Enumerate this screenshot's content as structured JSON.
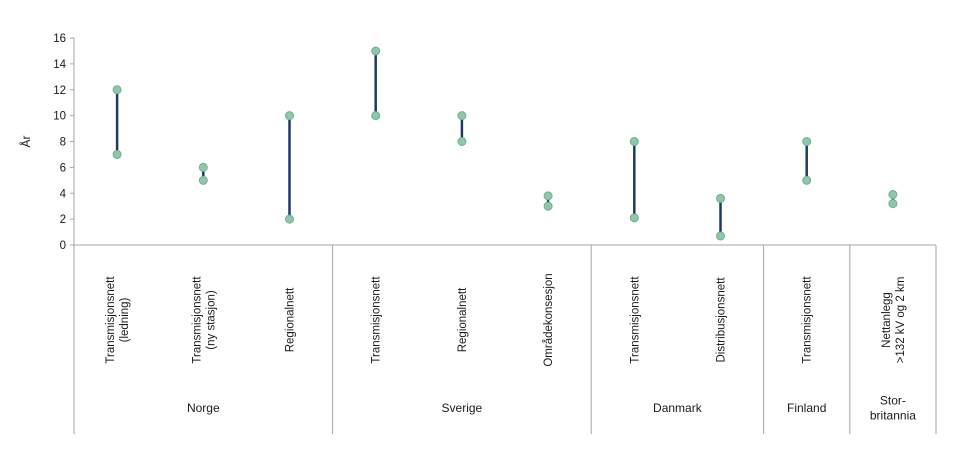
{
  "chart_data": {
    "type": "range",
    "title": "",
    "ylabel": "År",
    "ylim": [
      0,
      16
    ],
    "yticks": [
      0,
      2,
      4,
      6,
      8,
      10,
      12,
      14,
      16
    ],
    "grid": false,
    "legend": "none",
    "groups": [
      {
        "label": "Norge",
        "label_lines": [
          "Norge"
        ],
        "items": [
          {
            "label": "Transmisjonsnett (ledning)",
            "label_lines": [
              "Transmisjonsnett",
              "(ledning)"
            ],
            "low": 7,
            "high": 12
          },
          {
            "label": "Transmisjonsnett (ny stasjon)",
            "label_lines": [
              "Transmisjonsnett",
              "(ny stasjon)"
            ],
            "low": 5,
            "high": 6
          },
          {
            "label": "Regionalnett",
            "label_lines": [
              "Regionalnett"
            ],
            "low": 2,
            "high": 10
          }
        ]
      },
      {
        "label": "Sverige",
        "label_lines": [
          "Sverige"
        ],
        "items": [
          {
            "label": "Transmisjonsnett",
            "label_lines": [
              "Transmisjonsnett"
            ],
            "low": 10,
            "high": 15
          },
          {
            "label": "Regionalnett",
            "label_lines": [
              "Regionalnett"
            ],
            "low": 8,
            "high": 10
          },
          {
            "label": "Områdekonsesjon",
            "label_lines": [
              "Områdekonsesjon"
            ],
            "low": 3,
            "high": 3.8
          }
        ]
      },
      {
        "label": "Danmark",
        "label_lines": [
          "Danmark"
        ],
        "items": [
          {
            "label": "Transmisjonsnett",
            "label_lines": [
              "Transmisjonsnett"
            ],
            "low": 2.1,
            "high": 8
          },
          {
            "label": "Distribusjonsnett",
            "label_lines": [
              "Distribusjonsnett"
            ],
            "low": 0.7,
            "high": 3.6
          }
        ]
      },
      {
        "label": "Finland",
        "label_lines": [
          "Finland"
        ],
        "items": [
          {
            "label": "Transmisjonsnett",
            "label_lines": [
              "Transmisjonsnett"
            ],
            "low": 5,
            "high": 8
          }
        ]
      },
      {
        "label": "Stor-britannia",
        "label_lines": [
          "Stor-",
          "britannia"
        ],
        "items": [
          {
            "label": "Nettanlegg >132 kV og 2 km",
            "label_lines": [
              "Nettanlegg",
              ">132 kV og 2 km"
            ],
            "low": 3.2,
            "high": 3.9
          }
        ]
      }
    ],
    "colors": {
      "dot": "#8fc7ab",
      "dot_stroke": "#6fae91",
      "range_line": "#1f3864",
      "axis": "#a6a6a6",
      "text": "#1a1a1a"
    }
  }
}
